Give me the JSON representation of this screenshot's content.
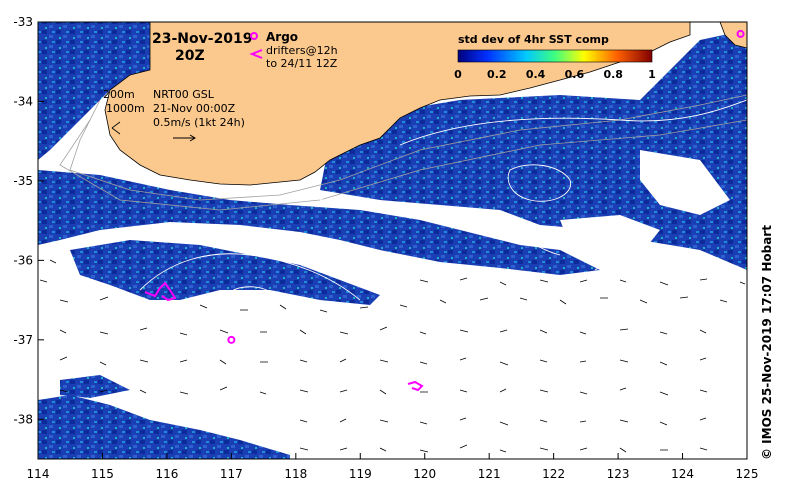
{
  "title": {
    "date": "23-Nov-2019",
    "time": "20Z"
  },
  "legend_argo": {
    "label": "Argo",
    "drifters": "drifters@12h",
    "drifters_to": "to 24/11 12Z"
  },
  "colorbar": {
    "title": "std dev of 4hr SST comp",
    "ticks": [
      "0",
      "0.2",
      "0.4",
      "0.6",
      "0.8",
      "1"
    ]
  },
  "notes": {
    "depth200": "200m",
    "depth1000": "1000m",
    "product": "NRT00 GSL",
    "product_time": "21-Nov 00:00Z",
    "current_scale": "0.5m/s (1kt 24h)"
  },
  "axes": {
    "x_ticks": [
      "114",
      "115",
      "116",
      "117",
      "118",
      "119",
      "120",
      "121",
      "122",
      "123",
      "124",
      "125"
    ],
    "y_ticks": [
      "-33",
      "-34",
      "-35",
      "-36",
      "-37",
      "-38"
    ],
    "lon_range": [
      114,
      125
    ],
    "lat_range": [
      -38.5,
      -33
    ]
  },
  "credit": "© IMOS 25-Nov-2019 17:07 Hobart",
  "colors": {
    "land": "#fbc88e",
    "contour": "#ffffff",
    "argo": "#ff00ff",
    "sst_low": "#1030b0"
  },
  "argo_floats": [
    {
      "lon": 117.0,
      "lat": -37.0
    },
    {
      "lon": 124.9,
      "lat": -33.15
    }
  ]
}
